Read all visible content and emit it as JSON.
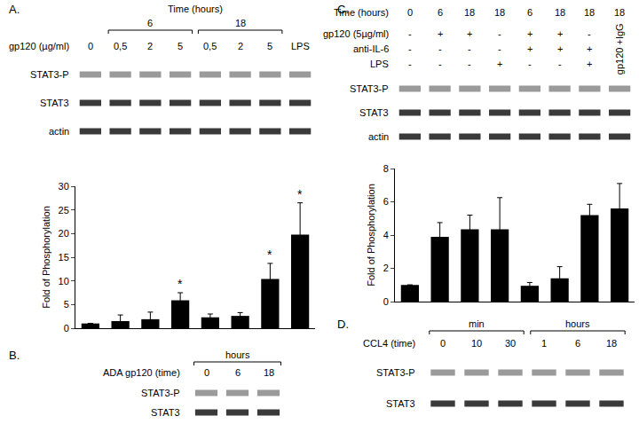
{
  "chart_data": [
    {
      "type": "bar",
      "categories": [
        null,
        null,
        null,
        null,
        null,
        null,
        null,
        null
      ],
      "values": [
        1,
        1.5,
        1.9,
        5.9,
        2.3,
        2.6,
        10.4,
        19.8
      ],
      "errors": [
        0,
        1.3,
        1.5,
        1.6,
        0.7,
        0.7,
        3.3,
        6.7
      ],
      "color": "#000000",
      "ylim": [
        0,
        30
      ],
      "yticks": [
        0,
        5,
        10,
        15,
        20,
        25,
        30
      ],
      "y_label": "Fold of Phosphorylation",
      "tick_labels": "y",
      "annotations": [
        {
          "text": "*",
          "index": 3
        },
        {
          "text": "*",
          "index": 6
        },
        {
          "text": "*",
          "index": 7
        }
      ]
    },
    {
      "type": "bar",
      "categories": [
        null,
        null,
        null,
        null,
        null,
        null,
        null,
        null
      ],
      "values": [
        1,
        3.9,
        4.35,
        4.35,
        0.95,
        1.4,
        5.2,
        5.6
      ],
      "errors": [
        0,
        0.85,
        0.85,
        1.9,
        0.2,
        0.7,
        0.65,
        1.5
      ],
      "color": "#000000",
      "ylim": [
        0,
        8
      ],
      "yticks": [
        0,
        2,
        4,
        6,
        8
      ],
      "y_label": "Fold of Phosphorylation",
      "tick_labels": "y"
    }
  ],
  "blots": {
    "A": {
      "panel": "A.",
      "group_title": "Time (hours)",
      "lane_groups": [
        null,
        "6",
        "6",
        "6",
        "18",
        "18",
        "18",
        null
      ],
      "lane_label_title": "gp120 (µg/ml)",
      "lane_labels": [
        "0",
        "0,5",
        "2",
        "5",
        "0,5",
        "2",
        "5",
        "LPS"
      ],
      "rows": [
        "STAT3-P",
        "STAT3",
        "actin"
      ]
    },
    "B": {
      "panel": "B.",
      "lane_groups": [
        "hours",
        "hours",
        "hours"
      ],
      "lane_label_title": "ADA gp120 (time)",
      "lane_labels": [
        "0",
        "6",
        "18"
      ],
      "rows": [
        "STAT3-P",
        "STAT3"
      ]
    },
    "C": {
      "panel": "C.",
      "lane_label_title": "Time (hours)",
      "lane_labels": [
        "0",
        "6",
        "18",
        "18",
        "6",
        "18",
        "18",
        "18"
      ],
      "conditions": [
        {
          "label": "gp120 (5µg/ml)",
          "marks": [
            "-",
            "+",
            "+",
            "-",
            "+",
            "+",
            "-",
            null
          ]
        },
        {
          "label": "anti-IL-6",
          "marks": [
            "-",
            "-",
            "-",
            "-",
            "+",
            "+",
            "+",
            null
          ]
        },
        {
          "label": "LPS",
          "marks": [
            "-",
            "-",
            "-",
            "+",
            "-",
            "-",
            "+",
            null
          ]
        }
      ],
      "lane_note": "gp120 +IgG",
      "rows": [
        "STAT3-P",
        "STAT3",
        "actin"
      ]
    },
    "D": {
      "panel": "D.",
      "lane_groups": [
        "min",
        "min",
        "min",
        "hours",
        "hours",
        "hours"
      ],
      "lane_label_title": "CCL4 (time)",
      "lane_labels": [
        "0",
        "10",
        "30",
        "1",
        "6",
        "18"
      ],
      "rows": [
        "STAT3-P",
        "STAT3"
      ]
    }
  }
}
